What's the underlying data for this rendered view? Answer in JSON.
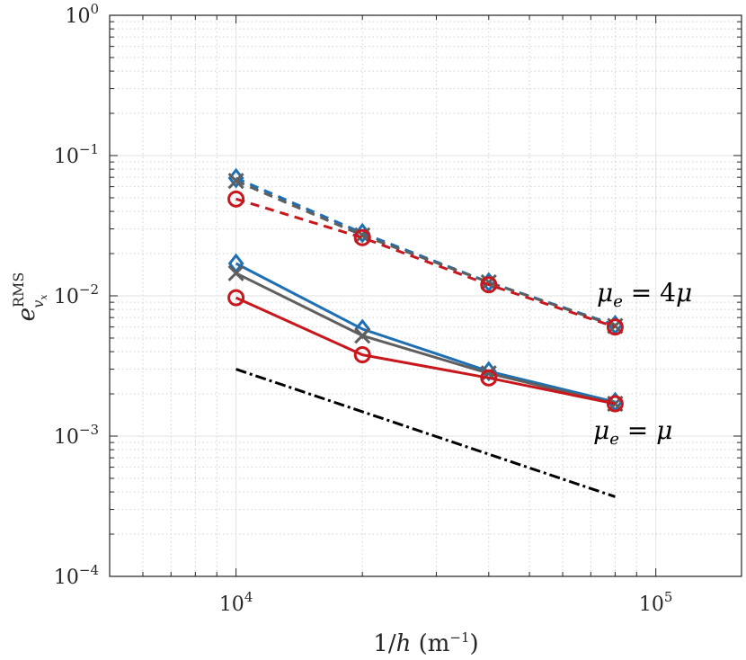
{
  "chart_data": {
    "type": "line",
    "x_scale": "log",
    "y_scale": "log",
    "xlim": [
      5000,
      160000
    ],
    "ylim": [
      0.0001,
      1
    ],
    "grid": true,
    "x_ticks": [
      {
        "value": 10000,
        "base": "10",
        "exp": "4"
      },
      {
        "value": 100000,
        "base": "10",
        "exp": "5"
      }
    ],
    "y_ticks": [
      {
        "value": 1,
        "base": "10",
        "exp": "0"
      },
      {
        "value": 0.1,
        "base": "10",
        "exp": "−1"
      },
      {
        "value": 0.01,
        "base": "10",
        "exp": "−2"
      },
      {
        "value": 0.001,
        "base": "10",
        "exp": "−3"
      },
      {
        "value": 0.0001,
        "base": "10",
        "exp": "−4"
      }
    ],
    "xlabel": "1/h (m⁻¹)",
    "ylabel": "e_vx^RMS",
    "annotations": [
      {
        "text": "μe = 4μ",
        "x": 80000,
        "y": 0.0105
      },
      {
        "text": "μe = μ",
        "x": 80000,
        "y": 0.00105
      }
    ],
    "series": [
      {
        "group": "4mu",
        "color": "#1f6fb4",
        "marker": "diamond",
        "dash": "dashed",
        "x": [
          10000,
          20000,
          40000,
          80000
        ],
        "y": [
          0.069,
          0.028,
          0.0125,
          0.0062
        ]
      },
      {
        "group": "4mu",
        "color": "#5f5f5f",
        "marker": "x",
        "dash": "dashed",
        "x": [
          10000,
          20000,
          40000,
          80000
        ],
        "y": [
          0.066,
          0.027,
          0.0125,
          0.0061
        ]
      },
      {
        "group": "4mu",
        "color": "#c8171d",
        "marker": "circle",
        "dash": "dashed",
        "x": [
          10000,
          20000,
          40000,
          80000
        ],
        "y": [
          0.049,
          0.026,
          0.012,
          0.006
        ]
      },
      {
        "group": "mu",
        "color": "#1f6fb4",
        "marker": "diamond",
        "dash": "solid",
        "x": [
          10000,
          20000,
          40000,
          80000
        ],
        "y": [
          0.017,
          0.0058,
          0.0029,
          0.00175
        ]
      },
      {
        "group": "mu",
        "color": "#5f5f5f",
        "marker": "x",
        "dash": "solid",
        "x": [
          10000,
          20000,
          40000,
          80000
        ],
        "y": [
          0.0145,
          0.0052,
          0.0028,
          0.0017
        ]
      },
      {
        "group": "mu",
        "color": "#c8171d",
        "marker": "circle",
        "dash": "solid",
        "x": [
          10000,
          20000,
          40000,
          80000
        ],
        "y": [
          0.0097,
          0.0038,
          0.0026,
          0.0017
        ]
      },
      {
        "group": "reference",
        "color": "#000000",
        "marker": "none",
        "dash": "dashdot",
        "x": [
          10000,
          80000
        ],
        "y": [
          0.003,
          0.00037
        ]
      }
    ]
  }
}
